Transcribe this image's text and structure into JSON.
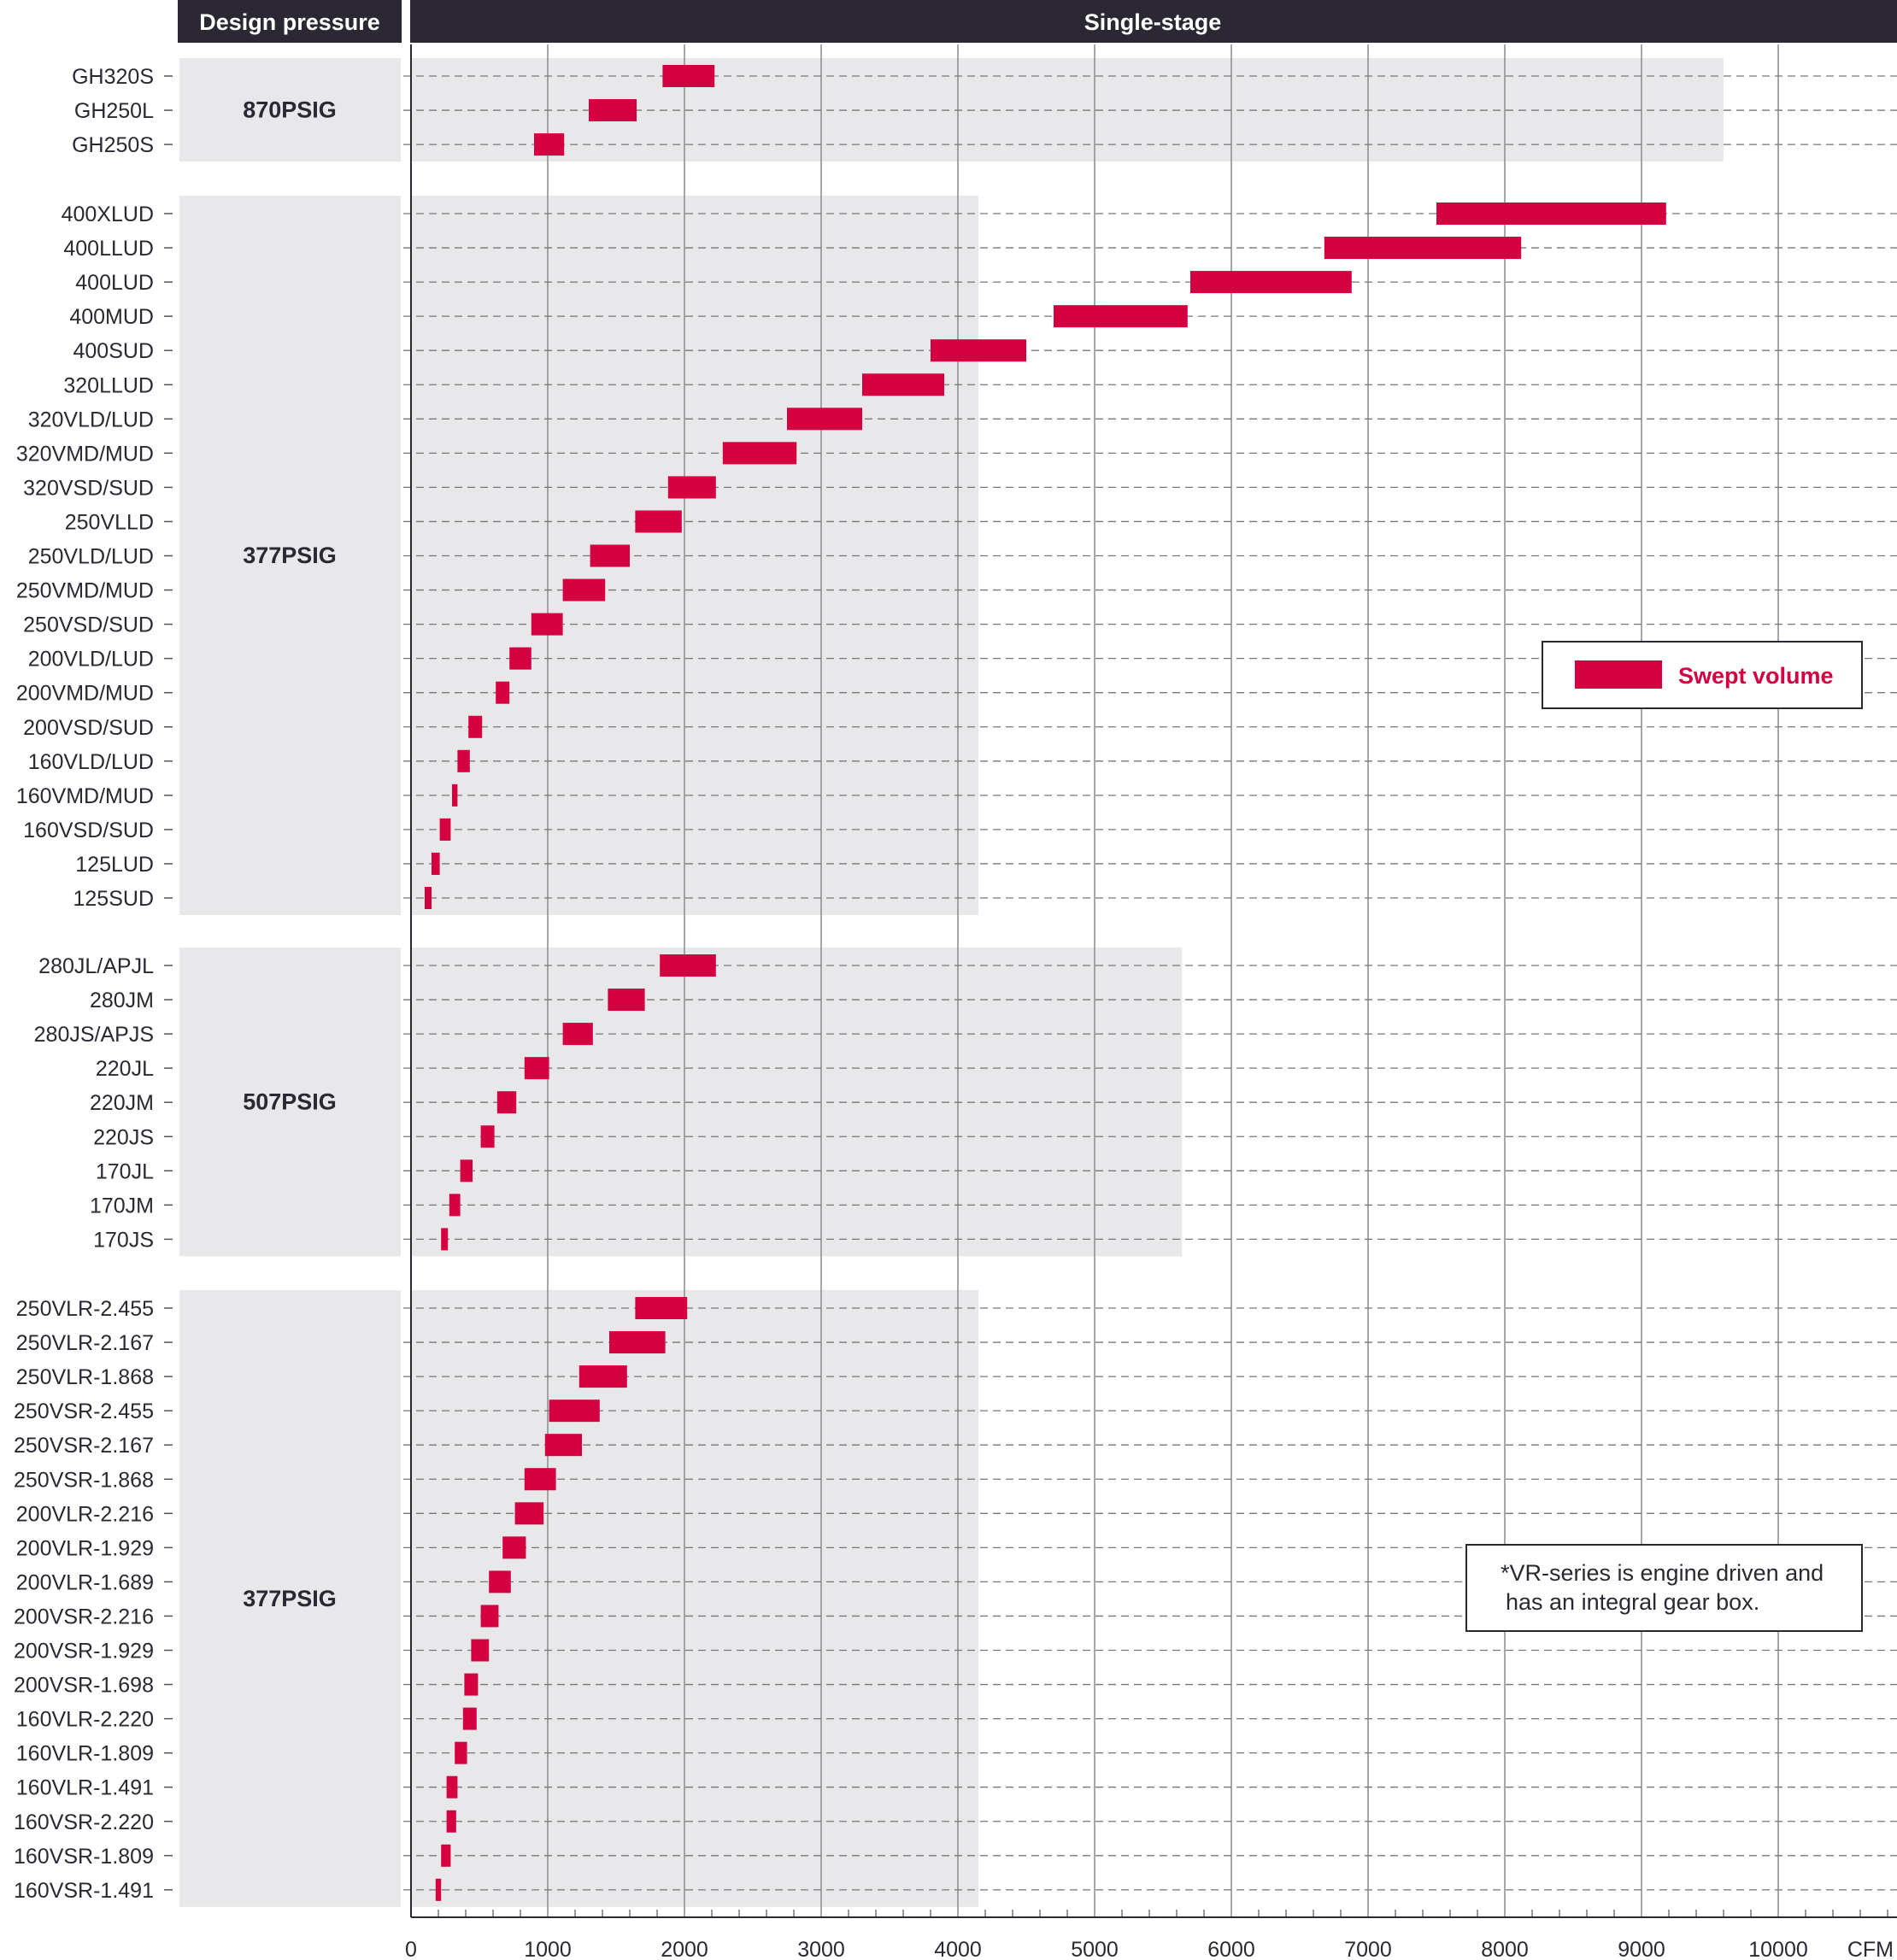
{
  "header": {
    "left": "Design pressure",
    "right": "Single-stage"
  },
  "legend": {
    "label": "Swept volume"
  },
  "note": {
    "line1": "*VR-series is engine driven and",
    "line2": "has an integral gear box."
  },
  "colors": {
    "bar": "#d40040",
    "header_bg": "#2b2833",
    "band": "#e8e8ea",
    "text": "#2b2833"
  },
  "chart_data": {
    "type": "bar",
    "orientation": "horizontal-range",
    "xlabel": "CFM",
    "xlim": [
      0,
      10000
    ],
    "xticks": [
      "0",
      "1000",
      "2000",
      "3000",
      "4000",
      "5000",
      "6000",
      "7000",
      "8000",
      "9000",
      "10000"
    ],
    "grid": true,
    "legend_position": "right",
    "groups": [
      {
        "pressure": "870PSIG",
        "band_end": 9600,
        "items": [
          {
            "model": "GH320S",
            "min": 1840,
            "max": 2220
          },
          {
            "model": "GH250L",
            "min": 1300,
            "max": 1650
          },
          {
            "model": "GH250S",
            "min": 900,
            "max": 1120
          }
        ]
      },
      {
        "pressure": "377PSIG",
        "band_end": 4150,
        "items": [
          {
            "model": "400XLUD",
            "min": 7500,
            "max": 9180
          },
          {
            "model": "400LLUD",
            "min": 6680,
            "max": 8120
          },
          {
            "model": "400LUD",
            "min": 5700,
            "max": 6880
          },
          {
            "model": "400MUD",
            "min": 4700,
            "max": 5680
          },
          {
            "model": "400SUD",
            "min": 3800,
            "max": 4500
          },
          {
            "model": "320LLUD",
            "min": 3300,
            "max": 3900
          },
          {
            "model": "320VLD/LUD",
            "min": 2750,
            "max": 3300
          },
          {
            "model": "320VMD/MUD",
            "min": 2280,
            "max": 2820
          },
          {
            "model": "320VSD/SUD",
            "min": 1880,
            "max": 2230
          },
          {
            "model": "250VLLD",
            "min": 1640,
            "max": 1980
          },
          {
            "model": "250VLD/LUD",
            "min": 1310,
            "max": 1600
          },
          {
            "model": "250VMD/MUD",
            "min": 1110,
            "max": 1420
          },
          {
            "model": "250VSD/SUD",
            "min": 880,
            "max": 1110
          },
          {
            "model": "200VLD/LUD",
            "min": 720,
            "max": 880
          },
          {
            "model": "200VMD/MUD",
            "min": 620,
            "max": 720
          },
          {
            "model": "200VSD/SUD",
            "min": 420,
            "max": 520
          },
          {
            "model": "160VLD/LUD",
            "min": 340,
            "max": 430
          },
          {
            "model": "160VMD/MUD",
            "min": 300,
            "max": 340
          },
          {
            "model": "160VSD/SUD",
            "min": 210,
            "max": 290
          },
          {
            "model": "125LUD",
            "min": 150,
            "max": 210
          },
          {
            "model": "125SUD",
            "min": 100,
            "max": 150
          }
        ]
      },
      {
        "pressure": "507PSIG",
        "band_end": 5640,
        "items": [
          {
            "model": "280JL/APJL",
            "min": 1820,
            "max": 2230
          },
          {
            "model": "280JM",
            "min": 1440,
            "max": 1710
          },
          {
            "model": "280JS/APJS",
            "min": 1110,
            "max": 1330
          },
          {
            "model": "220JL",
            "min": 830,
            "max": 1010
          },
          {
            "model": "220JM",
            "min": 630,
            "max": 770
          },
          {
            "model": "220JS",
            "min": 510,
            "max": 610
          },
          {
            "model": "170JL",
            "min": 360,
            "max": 450
          },
          {
            "model": "170JM",
            "min": 280,
            "max": 360
          },
          {
            "model": "170JS",
            "min": 220,
            "max": 270
          }
        ]
      },
      {
        "pressure": "377PSIG",
        "band_end": 4150,
        "items": [
          {
            "model": "250VLR-2.455",
            "min": 1640,
            "max": 2020
          },
          {
            "model": "250VLR-2.167",
            "min": 1450,
            "max": 1860
          },
          {
            "model": "250VLR-1.868",
            "min": 1230,
            "max": 1580
          },
          {
            "model": "250VSR-2.455",
            "min": 1010,
            "max": 1380
          },
          {
            "model": "250VSR-2.167",
            "min": 980,
            "max": 1250
          },
          {
            "model": "250VSR-1.868",
            "min": 830,
            "max": 1060
          },
          {
            "model": "200VLR-2.216",
            "min": 760,
            "max": 970
          },
          {
            "model": "200VLR-1.929",
            "min": 670,
            "max": 840
          },
          {
            "model": "200VLR-1.689",
            "min": 570,
            "max": 730
          },
          {
            "model": "200VSR-2.216",
            "min": 510,
            "max": 640
          },
          {
            "model": "200VSR-1.929",
            "min": 440,
            "max": 570
          },
          {
            "model": "200VSR-1.698",
            "min": 390,
            "max": 490
          },
          {
            "model": "160VLR-2.220",
            "min": 380,
            "max": 480
          },
          {
            "model": "160VLR-1.809",
            "min": 320,
            "max": 410
          },
          {
            "model": "160VLR-1.491",
            "min": 260,
            "max": 340
          },
          {
            "model": "160VSR-2.220",
            "min": 260,
            "max": 330
          },
          {
            "model": "160VSR-1.809",
            "min": 220,
            "max": 290
          },
          {
            "model": "160VSR-1.491",
            "min": 180,
            "max": 220
          }
        ]
      }
    ]
  }
}
